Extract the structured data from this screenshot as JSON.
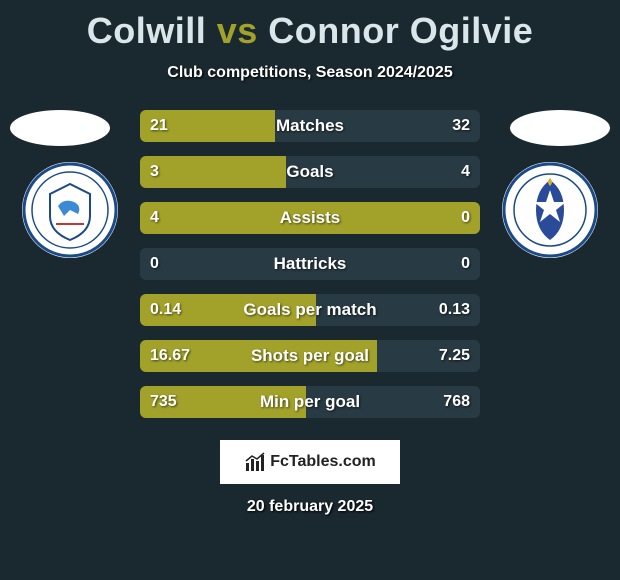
{
  "title": {
    "player1": "Colwill",
    "vs": "vs",
    "player2": "Connor Ogilvie",
    "color_player": "#d9e6ea",
    "color_vs": "#a2a22a"
  },
  "subtitle": "Club competitions, Season 2024/2025",
  "colors": {
    "background": "#1a2830",
    "bar_left": "#a2a22a",
    "bar_right": "#283a43",
    "row_bg": "#283a43",
    "text": "#ffffff",
    "ellipse": "#ffffff"
  },
  "badges": {
    "left": {
      "outer_bg": "#ffffff",
      "ring_color": "#1a4a8a",
      "bird_color": "#3a8ad6",
      "crest_bg": "#ffffff"
    },
    "right": {
      "outer_bg": "#ffffff",
      "ring_color": "#1a4a8a",
      "star_bg": "#2a4a9a",
      "star_color": "#ffffff"
    }
  },
  "rows": [
    {
      "label": "Matches",
      "left": "21",
      "right": "32",
      "left_pct": 39.6,
      "right_pct": 60.4
    },
    {
      "label": "Goals",
      "left": "3",
      "right": "4",
      "left_pct": 42.9,
      "right_pct": 57.1
    },
    {
      "label": "Assists",
      "left": "4",
      "right": "0",
      "left_pct": 100,
      "right_pct": 0
    },
    {
      "label": "Hattricks",
      "left": "0",
      "right": "0",
      "left_pct": 0,
      "right_pct": 0
    },
    {
      "label": "Goals per match",
      "left": "0.14",
      "right": "0.13",
      "left_pct": 51.9,
      "right_pct": 48.1
    },
    {
      "label": "Shots per goal",
      "left": "16.67",
      "right": "7.25",
      "left_pct": 69.7,
      "right_pct": 30.3
    },
    {
      "label": "Min per goal",
      "left": "735",
      "right": "768",
      "left_pct": 48.9,
      "right_pct": 51.1
    }
  ],
  "brand": "FcTables.com",
  "date": "20 february 2025"
}
